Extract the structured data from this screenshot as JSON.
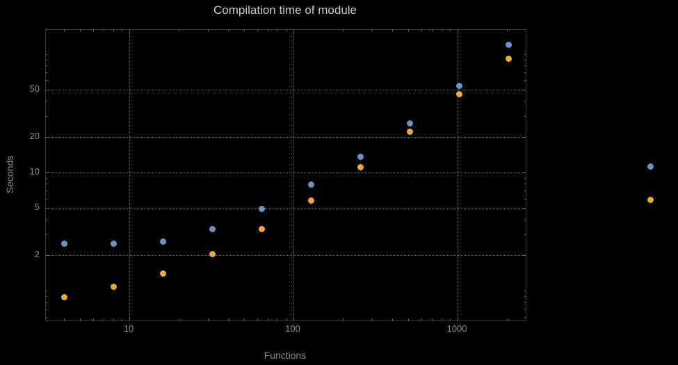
{
  "title": "Compilation time of module",
  "xlabel": "Functions",
  "ylabel": "Seconds",
  "chart_data": {
    "type": "scatter",
    "x_scale": "log",
    "y_scale": "log",
    "title": "Compilation time of module",
    "xlabel": "Functions",
    "ylabel": "Seconds",
    "grid": true,
    "x_range": [
      3.1,
      2600
    ],
    "y_range": [
      0.56,
      160
    ],
    "x": [
      4,
      8,
      16,
      32,
      64,
      128,
      256,
      512,
      1024,
      2048
    ],
    "series": [
      {
        "name": "series-1-blue",
        "color": "#6F92C6",
        "values": [
          2.5,
          2.5,
          2.6,
          3.3,
          4.9,
          7.9,
          13.5,
          26,
          54,
          120
        ]
      },
      {
        "name": "series-2-orange",
        "color": "#EEA83B",
        "values": [
          0.88,
          1.08,
          1.4,
          2.05,
          3.3,
          5.8,
          11,
          22,
          46,
          91
        ]
      }
    ],
    "x_ticks": [
      {
        "value": 10,
        "label": "10"
      },
      {
        "value": 100,
        "label": "100"
      },
      {
        "value": 1000,
        "label": "1000"
      }
    ],
    "y_ticks": [
      {
        "value": 2,
        "label": "2"
      },
      {
        "value": 5,
        "label": "5"
      },
      {
        "value": 10,
        "label": "10"
      },
      {
        "value": 20,
        "label": "20"
      },
      {
        "value": 50,
        "label": "50"
      }
    ],
    "legend_markers": [
      {
        "name": "legend-marker-blue",
        "color": "#6F92C6"
      },
      {
        "name": "legend-marker-orange",
        "color": "#EEA83B"
      }
    ]
  }
}
